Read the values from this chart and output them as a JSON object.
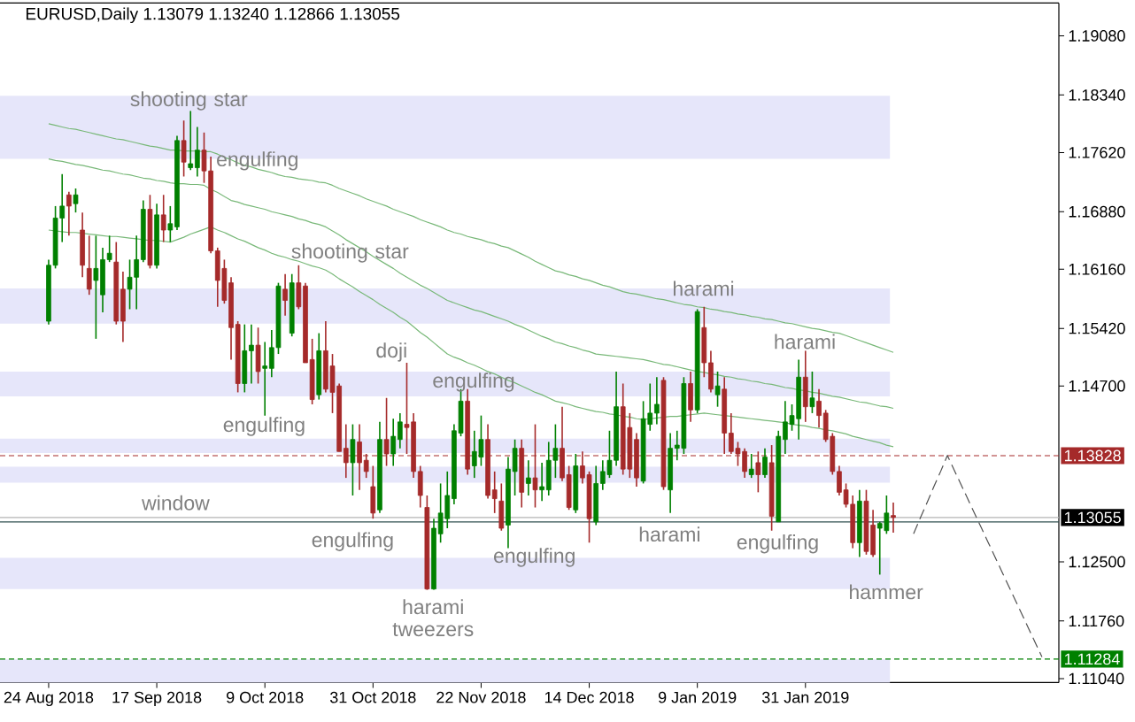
{
  "chart_data": {
    "type": "candlestick",
    "title": "EURUSD,Daily 1.13079 1.13240 1.12866 1.13055",
    "categories": [
      "24 Aug 2018",
      null,
      null,
      null,
      null,
      null,
      null,
      null,
      null,
      null,
      null,
      null,
      null,
      null,
      null,
      null,
      "17 Sep 2018",
      null,
      null,
      null,
      null,
      null,
      null,
      null,
      null,
      null,
      null,
      null,
      null,
      null,
      null,
      null,
      "9 Oct 2018",
      null,
      null,
      null,
      null,
      null,
      null,
      null,
      null,
      null,
      null,
      null,
      null,
      null,
      null,
      null,
      "31 Oct 2018",
      null,
      null,
      null,
      null,
      null,
      null,
      null,
      null,
      null,
      null,
      null,
      null,
      null,
      null,
      null,
      "22 Nov 2018",
      null,
      null,
      null,
      null,
      null,
      null,
      null,
      null,
      null,
      null,
      null,
      null,
      null,
      null,
      null,
      "14 Dec 2018",
      null,
      null,
      null,
      null,
      null,
      null,
      null,
      null,
      null,
      null,
      null,
      null,
      null,
      null,
      null,
      "9 Jan 2019",
      null,
      null,
      null,
      null,
      null,
      null,
      null,
      null,
      null,
      null,
      null,
      null,
      null,
      null,
      null,
      "31 Jan 2019",
      null,
      null,
      null,
      null,
      null,
      null,
      null,
      null,
      null,
      null,
      null,
      null,
      null,
      null,
      null,
      null,
      null,
      null,
      null,
      null,
      null,
      null,
      null,
      null,
      null,
      null,
      null,
      null,
      null,
      null,
      null,
      null,
      null,
      null,
      null,
      null,
      null
    ],
    "ohlc": [
      [
        1.1551,
        1.1628,
        1.1547,
        1.1621
      ],
      [
        1.1621,
        1.1695,
        1.1617,
        1.168
      ],
      [
        1.168,
        1.1735,
        1.165,
        1.1695
      ],
      [
        1.1709,
        1.1713,
        1.1658,
        1.1695
      ],
      [
        1.1698,
        1.1717,
        1.1687,
        1.1709
      ],
      [
        1.1665,
        1.1687,
        1.1606,
        1.1621
      ],
      [
        1.1617,
        1.1658,
        1.1584,
        1.1591
      ],
      [
        1.1602,
        1.1658,
        1.1529,
        1.1617
      ],
      [
        1.1584,
        1.1643,
        1.1562,
        1.1628
      ],
      [
        1.1628,
        1.1658,
        1.1625,
        1.1636
      ],
      [
        1.1625,
        1.165,
        1.1547,
        1.1551
      ],
      [
        1.1591,
        1.1613,
        1.1525,
        1.1551
      ],
      [
        1.1591,
        1.1628,
        1.1566,
        1.1606
      ],
      [
        1.1606,
        1.1658,
        1.1566,
        1.1628
      ],
      [
        1.1628,
        1.1702,
        1.1625,
        1.1691
      ],
      [
        1.1691,
        1.1709,
        1.1617,
        1.1621
      ],
      [
        1.1621,
        1.1698,
        1.1617,
        1.1684
      ],
      [
        1.1684,
        1.1709,
        1.165,
        1.1665
      ],
      [
        1.1665,
        1.1695,
        1.165,
        1.1673
      ],
      [
        1.1669,
        1.1783,
        1.1665,
        1.1777
      ],
      [
        1.1777,
        1.1802,
        1.1732,
        1.175
      ],
      [
        1.1743,
        1.1814,
        1.174,
        1.1748
      ],
      [
        1.1743,
        1.1794,
        1.1732,
        1.1765
      ],
      [
        1.1765,
        1.1787,
        1.1724,
        1.1739
      ],
      [
        1.1739,
        1.1757,
        1.1636,
        1.1639
      ],
      [
        1.1639,
        1.1643,
        1.1569,
        1.1602
      ],
      [
        1.1617,
        1.1628,
        1.1573,
        1.1577
      ],
      [
        1.1599,
        1.1606,
        1.1503,
        1.1543
      ],
      [
        1.1547,
        1.1551,
        1.1462,
        1.1473
      ],
      [
        1.1473,
        1.1547,
        1.1462,
        1.1514
      ],
      [
        1.1514,
        1.1547,
        1.1473,
        1.1521
      ],
      [
        1.1521,
        1.1543,
        1.1473,
        1.1488
      ],
      [
        1.1492,
        1.1525,
        1.1433,
        1.1495
      ],
      [
        1.1492,
        1.154,
        1.1481,
        1.1518
      ],
      [
        1.1518,
        1.1599,
        1.151,
        1.1595
      ],
      [
        1.1591,
        1.161,
        1.1558,
        1.1577
      ],
      [
        1.1536,
        1.161,
        1.1532,
        1.1599
      ],
      [
        1.1599,
        1.1621,
        1.1566,
        1.1569
      ],
      [
        1.1595,
        1.1599,
        1.1499,
        1.1499
      ],
      [
        1.1503,
        1.1529,
        1.1447,
        1.1453
      ],
      [
        1.1459,
        1.1536,
        1.1453,
        1.1514
      ],
      [
        1.1514,
        1.1551,
        1.1462,
        1.1466
      ],
      [
        1.1495,
        1.151,
        1.1436,
        1.1462
      ],
      [
        1.147,
        1.1473,
        1.1388,
        1.1388
      ],
      [
        1.1392,
        1.1422,
        1.1355,
        1.1374
      ],
      [
        1.1374,
        1.1422,
        1.1333,
        1.1403
      ],
      [
        1.14,
        1.1422,
        1.134,
        1.1374
      ],
      [
        1.1377,
        1.1385,
        1.1355,
        1.1363
      ],
      [
        1.1344,
        1.137,
        1.1304,
        1.1311
      ],
      [
        1.1315,
        1.1425,
        1.1311,
        1.1403
      ],
      [
        1.1403,
        1.1455,
        1.137,
        1.1385
      ],
      [
        1.1385,
        1.1429,
        1.137,
        1.1407
      ],
      [
        1.1403,
        1.1436,
        1.1392,
        1.1425
      ],
      [
        1.1422,
        1.1499,
        1.1385,
        1.1418
      ],
      [
        1.1425,
        1.1436,
        1.1355,
        1.1363
      ],
      [
        1.1363,
        1.137,
        1.1318,
        1.1333
      ],
      [
        1.1318,
        1.1333,
        1.1215,
        1.1216
      ],
      [
        1.1216,
        1.1304,
        1.1215,
        1.1292
      ],
      [
        1.1285,
        1.1348,
        1.1274,
        1.1311
      ],
      [
        1.1304,
        1.1363,
        1.1292,
        1.1333
      ],
      [
        1.1329,
        1.1422,
        1.1322,
        1.1414
      ],
      [
        1.1411,
        1.1466,
        1.1407,
        1.1451
      ],
      [
        1.1451,
        1.1466,
        1.1359,
        1.1366
      ],
      [
        1.137,
        1.1414,
        1.1355,
        1.1388
      ],
      [
        1.1381,
        1.1433,
        1.137,
        1.1403
      ],
      [
        1.1403,
        1.1422,
        1.1329,
        1.1333
      ],
      [
        1.134,
        1.1363,
        1.1311,
        1.1329
      ],
      [
        1.1326,
        1.1348,
        1.1289,
        1.1292
      ],
      [
        1.1296,
        1.1381,
        1.1267,
        1.1366
      ],
      [
        1.1363,
        1.1403,
        1.1333,
        1.1392
      ],
      [
        1.1392,
        1.1403,
        1.1318,
        1.1337
      ],
      [
        1.1348,
        1.1377,
        1.1333,
        1.1355
      ],
      [
        1.1355,
        1.1422,
        1.1318,
        1.134
      ],
      [
        1.134,
        1.1374,
        1.1326,
        1.1344
      ],
      [
        1.134,
        1.14,
        1.1333,
        1.1377
      ],
      [
        1.1377,
        1.1422,
        1.1355,
        1.1392
      ],
      [
        1.1392,
        1.1444,
        1.1351,
        1.1355
      ],
      [
        1.1359,
        1.137,
        1.1315,
        1.1318
      ],
      [
        1.1315,
        1.1385,
        1.1311,
        1.137
      ],
      [
        1.137,
        1.1388,
        1.1348,
        1.1355
      ],
      [
        1.1359,
        1.1363,
        1.1274,
        1.1304
      ],
      [
        1.13,
        1.137,
        1.1296,
        1.1348
      ],
      [
        1.1348,
        1.1377,
        1.134,
        1.1363
      ],
      [
        1.1359,
        1.1414,
        1.1355,
        1.1377
      ],
      [
        1.1377,
        1.1488,
        1.137,
        1.1444
      ],
      [
        1.1444,
        1.1473,
        1.1359,
        1.1366
      ],
      [
        1.1418,
        1.1436,
        1.1355,
        1.1366
      ],
      [
        1.1403,
        1.1411,
        1.1344,
        1.1355
      ],
      [
        1.1351,
        1.1451,
        1.1348,
        1.1429
      ],
      [
        1.1422,
        1.1473,
        1.1414,
        1.1436
      ],
      [
        1.1436,
        1.1481,
        1.1422,
        1.1447
      ],
      [
        1.1477,
        1.1481,
        1.134,
        1.1344
      ],
      [
        1.134,
        1.1411,
        1.1311,
        1.1392
      ],
      [
        1.1392,
        1.1414,
        1.1377,
        1.1396
      ],
      [
        1.1392,
        1.1481,
        1.1385,
        1.1473
      ],
      [
        1.1473,
        1.1488,
        1.1425,
        1.144
      ],
      [
        1.144,
        1.1566,
        1.1436,
        1.1563
      ],
      [
        1.1543,
        1.1569,
        1.1481,
        1.1499
      ],
      [
        1.1499,
        1.1514,
        1.1462,
        1.1466
      ],
      [
        1.1459,
        1.1488,
        1.1444,
        1.147
      ],
      [
        1.1466,
        1.1481,
        1.1385,
        1.1411
      ],
      [
        1.1411,
        1.1436,
        1.1385,
        1.1388
      ],
      [
        1.1392,
        1.14,
        1.137,
        1.1385
      ],
      [
        1.1388,
        1.1392,
        1.1355,
        1.1363
      ],
      [
        1.1359,
        1.1385,
        1.1355,
        1.1366
      ],
      [
        1.1374,
        1.1388,
        1.1337,
        1.1359
      ],
      [
        1.1359,
        1.1392,
        1.1355,
        1.1381
      ],
      [
        1.1374,
        1.1396,
        1.1289,
        1.1307
      ],
      [
        1.13,
        1.1414,
        1.13,
        1.1407
      ],
      [
        1.1403,
        1.1451,
        1.1385,
        1.1425
      ],
      [
        1.1422,
        1.1447,
        1.1414,
        1.1433
      ],
      [
        1.1429,
        1.1503,
        1.1403,
        1.1481
      ],
      [
        1.1481,
        1.1514,
        1.1425,
        1.1444
      ],
      [
        1.1444,
        1.1488,
        1.1436,
        1.1455
      ],
      [
        1.1451,
        1.1466,
        1.1418,
        1.1433
      ],
      [
        1.1436,
        1.144,
        1.14,
        1.1403
      ],
      [
        1.1407,
        1.1411,
        1.1359,
        1.1363
      ],
      [
        1.1363,
        1.137,
        1.1333,
        1.1337
      ],
      [
        1.134,
        1.1348,
        1.1318,
        1.1322
      ],
      [
        1.1322,
        1.1333,
        1.1267,
        1.1274
      ],
      [
        1.1274,
        1.134,
        1.1256,
        1.1326
      ],
      [
        1.1326,
        1.134,
        1.1259,
        1.1263
      ],
      [
        1.1296,
        1.1315,
        1.1256,
        1.1259
      ],
      [
        1.1292,
        1.13,
        1.1234,
        1.1298
      ],
      [
        1.1289,
        1.1333,
        1.1285,
        1.1311
      ],
      [
        1.13079,
        1.1324,
        1.12866,
        1.13055
      ],
      null,
      null,
      null,
      null,
      null,
      null,
      null,
      null,
      null,
      null,
      null,
      null,
      null,
      null,
      null,
      null,
      null,
      null,
      null,
      null,
      null,
      null,
      null,
      null
    ],
    "colors": [
      "#008000",
      "#008000",
      "#008000",
      "#a52a2a",
      "#008000",
      "#a52a2a",
      "#a52a2a",
      "#008000",
      "#008000",
      "#008000",
      "#a52a2a",
      "#a52a2a",
      "#008000",
      "#008000",
      "#008000",
      "#a52a2a",
      "#008000",
      "#a52a2a",
      "#008000",
      "#008000",
      "#a52a2a",
      "#008000",
      "#008000",
      "#a52a2a",
      "#a52a2a",
      "#a52a2a",
      "#a52a2a",
      "#a52a2a",
      "#a52a2a",
      "#008000",
      "#008000",
      "#a52a2a",
      "#008000",
      "#008000",
      "#008000",
      "#a52a2a",
      "#008000",
      "#a52a2a",
      "#a52a2a",
      "#a52a2a",
      "#008000",
      "#a52a2a",
      "#a52a2a",
      "#a52a2a",
      "#a52a2a",
      "#008000",
      "#a52a2a",
      "#a52a2a",
      "#a52a2a",
      "#008000",
      "#a52a2a",
      "#008000",
      "#008000",
      "#a52a2a",
      "#a52a2a",
      "#a52a2a",
      "#a52a2a",
      "#008000",
      "#008000",
      "#008000",
      "#008000",
      "#008000",
      "#a52a2a",
      "#008000",
      "#008000",
      "#a52a2a",
      "#a52a2a",
      "#a52a2a",
      "#008000",
      "#008000",
      "#a52a2a",
      "#008000",
      "#a52a2a",
      "#008000",
      "#008000",
      "#008000",
      "#a52a2a",
      "#a52a2a",
      "#008000",
      "#a52a2a",
      "#a52a2a",
      "#008000",
      "#008000",
      "#008000",
      "#008000",
      "#a52a2a",
      "#a52a2a",
      "#a52a2a",
      "#008000",
      "#008000",
      "#008000",
      "#a52a2a",
      "#008000",
      "#008000",
      "#008000",
      "#a52a2a",
      "#008000",
      "#a52a2a",
      "#a52a2a",
      "#008000",
      "#a52a2a",
      "#a52a2a",
      "#a52a2a",
      "#a52a2a",
      "#008000",
      "#a52a2a",
      "#008000",
      "#a52a2a",
      "#008000",
      "#008000",
      "#008000",
      "#008000",
      "#a52a2a",
      "#008000",
      "#a52a2a",
      "#a52a2a",
      "#a52a2a",
      "#a52a2a",
      "#a52a2a",
      "#a52a2a",
      "#008000",
      "#a52a2a",
      "#a52a2a",
      "#008000",
      "#008000",
      "#a52a2a",
      null,
      null,
      null,
      null,
      null,
      null,
      null,
      null,
      null,
      null,
      null,
      null,
      null,
      null,
      null,
      null,
      null,
      null,
      null,
      null,
      null,
      null,
      null,
      null
    ],
    "series": [
      {
        "type": "line",
        "color": "#78b878",
        "values": [
          1.1798,
          1.1796,
          1.1794,
          1.1792,
          1.1791,
          1.1789,
          1.1787,
          1.1785,
          1.1783,
          1.1781,
          1.1779,
          1.1778,
          1.1776,
          1.1774,
          1.1772,
          1.177,
          1.1769,
          1.1767,
          1.1765,
          1.1765,
          1.1764,
          1.1764,
          1.1764,
          1.1763,
          1.1763,
          1.176,
          1.1756,
          1.1753,
          1.1749,
          1.1746,
          1.1744,
          1.1741,
          1.1739,
          1.1737,
          1.1734,
          1.1732,
          1.1731,
          1.1729,
          1.1728,
          1.1727,
          1.1725,
          1.1724,
          1.1721,
          1.1717,
          1.1714,
          1.1711,
          1.1708,
          1.1704,
          1.1701,
          1.1698,
          1.1695,
          1.1691,
          1.1688,
          1.1685,
          1.1682,
          1.1678,
          1.1675,
          1.1672,
          1.1669,
          1.1665,
          1.1662,
          1.166,
          1.1657,
          1.1655,
          1.1653,
          1.165,
          1.1648,
          1.1645,
          1.1643,
          1.1639,
          1.1635,
          1.1631,
          1.1626,
          1.1622,
          1.1618,
          1.1614,
          1.1612,
          1.1609,
          1.1607,
          1.1604,
          1.1602,
          1.1599,
          1.1596,
          1.1594,
          1.1591,
          1.1588,
          1.1586,
          1.1585,
          1.1583,
          1.1581,
          1.1579,
          1.1578,
          1.1576,
          1.1574,
          1.1572,
          1.1571,
          1.1569,
          1.1568,
          1.1566,
          1.1565,
          1.1563,
          1.1562,
          1.156,
          1.1559,
          1.1557,
          1.1556,
          1.1554,
          1.1553,
          1.1551,
          1.1549,
          1.1548,
          1.1546,
          1.1544,
          1.1542,
          1.1541,
          1.1539,
          1.1537,
          1.1536,
          1.1533,
          1.153,
          1.1527,
          1.1524,
          1.1521,
          1.1518,
          1.1515,
          1.1512,
          null,
          null,
          null,
          null,
          null,
          null,
          null,
          null,
          null,
          null,
          null,
          null,
          null,
          null,
          null,
          null,
          null,
          null,
          null,
          null,
          null,
          null,
          null,
          null
        ]
      },
      {
        "type": "line",
        "color": "#78b878",
        "values": [
          1.1754,
          1.1752,
          1.1751,
          1.1749,
          1.1747,
          1.1746,
          1.1744,
          1.1742,
          1.174,
          1.1739,
          1.1737,
          1.1735,
          1.1734,
          1.1732,
          1.173,
          1.1729,
          1.1727,
          1.1726,
          1.1724,
          1.1723,
          1.1723,
          1.1722,
          1.1722,
          1.1721,
          1.1716,
          1.1712,
          1.1707,
          1.1702,
          1.17,
          1.1697,
          1.1695,
          1.1693,
          1.1691,
          1.1688,
          1.1686,
          1.1684,
          1.1682,
          1.1679,
          1.1677,
          1.1674,
          1.1672,
          1.1669,
          1.1664,
          1.1659,
          1.1653,
          1.1648,
          1.1643,
          1.1638,
          1.1632,
          1.1627,
          1.1622,
          1.1617,
          1.1611,
          1.1606,
          1.1601,
          1.1596,
          1.1592,
          1.1587,
          1.1582,
          1.1577,
          1.1574,
          1.1571,
          1.1568,
          1.1565,
          1.1563,
          1.156,
          1.1557,
          1.1554,
          1.1551,
          1.1547,
          1.1544,
          1.154,
          1.1536,
          1.1532,
          1.1529,
          1.1525,
          1.1523,
          1.152,
          1.1518,
          1.1515,
          1.1513,
          1.151,
          1.1509,
          1.1508,
          1.1507,
          1.1506,
          1.1505,
          1.1504,
          1.1503,
          1.1501,
          1.1499,
          1.1497,
          1.1496,
          1.1494,
          1.1492,
          1.149,
          1.1488,
          1.1487,
          1.1485,
          1.1484,
          1.1482,
          1.1481,
          1.1479,
          1.1478,
          1.1476,
          1.1475,
          1.1473,
          1.1472,
          1.147,
          1.1468,
          1.1467,
          1.1465,
          1.1464,
          1.1462,
          1.1461,
          1.1459,
          1.1457,
          1.1456,
          1.1454,
          1.1452,
          1.145,
          1.1449,
          1.1447,
          1.1445,
          1.1444,
          1.1442,
          null,
          null,
          null,
          null,
          null,
          null,
          null,
          null,
          null,
          null,
          null,
          null,
          null,
          null,
          null,
          null,
          null,
          null,
          null,
          null,
          null,
          null,
          null,
          null
        ]
      },
      {
        "type": "line",
        "color": "#78b878",
        "values": [
          1.1665,
          1.1664,
          1.1663,
          1.1662,
          1.1662,
          1.1661,
          1.166,
          1.1659,
          1.1658,
          1.1657,
          1.1657,
          1.1656,
          1.1655,
          1.1654,
          1.1653,
          1.1652,
          1.1652,
          1.1651,
          1.165,
          1.1653,
          1.1656,
          1.166,
          1.1663,
          1.1666,
          1.1669,
          1.1665,
          1.1662,
          1.1658,
          1.1654,
          1.1651,
          1.1647,
          1.1643,
          1.164,
          1.1636,
          1.1633,
          1.1631,
          1.1628,
          1.1626,
          1.1623,
          1.162,
          1.1618,
          1.1615,
          1.161,
          1.1604,
          1.1599,
          1.1594,
          1.1588,
          1.1583,
          1.1578,
          1.1572,
          1.1567,
          1.1562,
          1.1556,
          1.1551,
          1.1544,
          1.1537,
          1.1531,
          1.1524,
          1.1517,
          1.151,
          1.1506,
          1.1503,
          1.1499,
          1.1496,
          1.1492,
          1.1488,
          1.1485,
          1.1481,
          1.1477,
          1.1474,
          1.147,
          1.1466,
          1.1462,
          1.1459,
          1.1455,
          1.1451,
          1.1449,
          1.1447,
          1.1444,
          1.1442,
          1.144,
          1.1438,
          1.1437,
          1.1435,
          1.1434,
          1.1432,
          1.1431,
          1.1429,
          1.1428,
          1.1429,
          1.143,
          1.1431,
          1.1432,
          1.1432,
          1.1433,
          1.1434,
          1.1435,
          1.1436,
          1.1435,
          1.1434,
          1.1433,
          1.1432,
          1.1431,
          1.143,
          1.1429,
          1.1428,
          1.1427,
          1.1426,
          1.1425,
          1.1424,
          1.1422,
          1.1421,
          1.142,
          1.1418,
          1.1417,
          1.1415,
          1.1414,
          1.1412,
          1.141,
          1.1407,
          1.1405,
          1.1403,
          1.1401,
          1.1399,
          1.1396,
          1.1394,
          null,
          null,
          null,
          null,
          null,
          null,
          null,
          null,
          null,
          null,
          null,
          null,
          null,
          null,
          null,
          null,
          null,
          null,
          null,
          null,
          null,
          null,
          null,
          null
        ]
      },
      {
        "type": "line",
        "color": "#505050",
        "line_style": "dashed",
        "values": [
          null,
          null,
          null,
          null,
          null,
          null,
          null,
          null,
          null,
          null,
          null,
          null,
          null,
          null,
          null,
          null,
          null,
          null,
          null,
          null,
          null,
          null,
          null,
          null,
          null,
          null,
          null,
          null,
          null,
          null,
          null,
          null,
          null,
          null,
          null,
          null,
          null,
          null,
          null,
          null,
          null,
          null,
          null,
          null,
          null,
          null,
          null,
          null,
          null,
          null,
          null,
          null,
          null,
          null,
          null,
          null,
          null,
          null,
          null,
          null,
          null,
          null,
          null,
          null,
          null,
          null,
          null,
          null,
          null,
          null,
          null,
          null,
          null,
          null,
          null,
          null,
          null,
          null,
          null,
          null,
          null,
          null,
          null,
          null,
          null,
          null,
          null,
          null,
          null,
          null,
          null,
          null,
          null,
          null,
          null,
          null,
          null,
          null,
          null,
          null,
          null,
          null,
          null,
          null,
          null,
          null,
          null,
          null,
          null,
          null,
          null,
          null,
          null,
          null,
          null,
          null,
          null,
          null,
          null,
          null,
          null,
          null,
          null,
          null,
          null,
          null,
          null,
          null,
          1.1285,
          1.1305,
          1.1324,
          1.1344,
          1.1363,
          1.1383,
          1.1365,
          1.1347,
          1.1329,
          1.1311,
          1.1293,
          1.1275,
          1.1257,
          1.1239,
          1.1221,
          1.1203,
          1.1185,
          1.1167,
          1.1149,
          1.1131,
          null,
          null
        ]
      }
    ],
    "ylim": [
      1.1099,
      1.1949
    ],
    "yticks": [
      {
        "value": 1.1908,
        "label": "1.19080"
      },
      {
        "value": 1.1834,
        "label": "1.18340"
      },
      {
        "value": 1.1762,
        "label": "1.17620"
      },
      {
        "value": 1.1688,
        "label": "1.16880"
      },
      {
        "value": 1.1616,
        "label": "1.16160"
      },
      {
        "value": 1.1542,
        "label": "1.15420"
      },
      {
        "value": 1.147,
        "label": "1.14700"
      },
      {
        "value": 1.125,
        "label": "1.12500"
      },
      {
        "value": 1.1176,
        "label": "1.11760"
      },
      {
        "value": 1.1104,
        "label": "1.11040"
      }
    ],
    "bands": [
      {
        "axis": "y",
        "from": 1.1754,
        "to": 1.1833,
        "color": "#e6e6fa"
      },
      {
        "axis": "y",
        "from": 1.1548,
        "to": 1.1592,
        "color": "#e6e6fa"
      },
      {
        "axis": "y",
        "from": 1.1457,
        "to": 1.1488,
        "color": "#e6e6fa"
      },
      {
        "axis": "y",
        "from": 1.1386,
        "to": 1.1404,
        "color": "#e6e6fa"
      },
      {
        "axis": "y",
        "from": 1.1349,
        "to": 1.1369,
        "color": "#e6e6fa"
      },
      {
        "axis": "y",
        "from": 1.1216,
        "to": 1.1255,
        "color": "#e6e6fa"
      },
      {
        "axis": "y",
        "from": 1.1099,
        "to": 1.1128,
        "color": "#e6e6fa"
      }
    ],
    "ref_lines": [
      {
        "axis": "y",
        "value": 1.13828,
        "label": "1.13828",
        "color": "#a52a2a",
        "line_style": "dashed"
      },
      {
        "axis": "y",
        "value": 1.13055,
        "label": "1.13055",
        "color": "#b4b4b4",
        "line_style": "solid"
      },
      {
        "axis": "y",
        "value": 1.13,
        "color": "#2f4f4f",
        "line_style": "solid"
      },
      {
        "axis": "y",
        "value": 1.11284,
        "label": "1.11284",
        "color": "#008000",
        "line_style": "dashed"
      }
    ],
    "annotations": [
      {
        "text": "shooting star",
        "y": 1.1814
      },
      {
        "text": "engulfing",
        "y": 1.1757
      },
      "shooting star",
      {
        "text": "doji",
        "y": 1.1499
      },
      {
        "text": "engulfing",
        "y": 1.1466
      },
      {
        "text": "engulfing",
        "y": 1.1433
      },
      {
        "text": "harami",
        "y": 1.1569
      },
      {
        "text": "harami",
        "y": 1.1514
      },
      {
        "text": "window",
        "y": 1.13
      },
      {
        "text": "engulfing",
        "y": 1.1304
      },
      "engulfing",
      {
        "text": "harami",
        "y": 1.1311
      },
      {
        "text": "engulfing",
        "y": 1.1289
      },
      {
        "text": "harami tweezers",
        "y": 1.1215
      },
      {
        "text": "hammer",
        "y": 1.1234
      }
    ]
  }
}
